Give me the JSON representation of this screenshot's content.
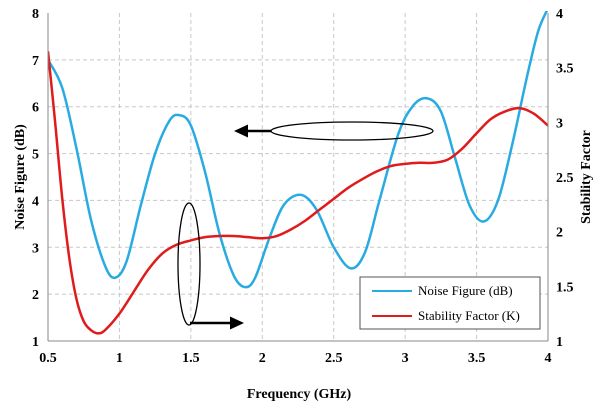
{
  "chart_data": {
    "type": "line",
    "xlabel": "Frequency (GHz)",
    "ylabel_left": "Noise Figure (dB)",
    "ylabel_right": "Stability Factor",
    "xlim": [
      0.5,
      4
    ],
    "ylim_left": [
      1,
      8
    ],
    "ylim_right": [
      1,
      4
    ],
    "x_ticks": [
      "0.5",
      "1",
      "1.5",
      "2",
      "2.5",
      "3",
      "3.5",
      "4"
    ],
    "y_left_ticks": [
      "1",
      "2",
      "3",
      "4",
      "5",
      "6",
      "7",
      "8"
    ],
    "y_right_ticks": [
      "1",
      "1.5",
      "2",
      "2.5",
      "3",
      "3.5",
      "4"
    ],
    "grid": true,
    "legend_position": "bottom-right",
    "series": [
      {
        "name": "Noise Figure (dB)",
        "axis": "left",
        "color": "#29abe2",
        "x": [
          0.5,
          0.6,
          0.7,
          0.8,
          0.9,
          0.97,
          1.05,
          1.15,
          1.25,
          1.35,
          1.42,
          1.5,
          1.6,
          1.7,
          1.8,
          1.88,
          1.95,
          2.05,
          2.15,
          2.27,
          2.38,
          2.5,
          2.62,
          2.72,
          2.82,
          2.95,
          3.05,
          3.15,
          3.25,
          3.35,
          3.45,
          3.55,
          3.65,
          3.75,
          3.85,
          3.93,
          4.0
        ],
        "values": [
          7.0,
          6.4,
          5.1,
          3.6,
          2.6,
          2.35,
          2.7,
          3.9,
          5.0,
          5.7,
          5.82,
          5.6,
          4.6,
          3.3,
          2.4,
          2.15,
          2.35,
          3.2,
          3.9,
          4.12,
          3.8,
          3.0,
          2.55,
          2.9,
          4.0,
          5.4,
          6.0,
          6.18,
          5.9,
          4.9,
          3.9,
          3.55,
          4.0,
          5.2,
          6.6,
          7.6,
          8.1
        ]
      },
      {
        "name": "Stability Factor (K)",
        "axis": "right",
        "color": "#e01b1b",
        "x": [
          0.5,
          0.55,
          0.6,
          0.65,
          0.7,
          0.75,
          0.8,
          0.85,
          0.9,
          1.0,
          1.1,
          1.2,
          1.3,
          1.4,
          1.5,
          1.6,
          1.7,
          1.8,
          1.9,
          2.0,
          2.1,
          2.2,
          2.3,
          2.4,
          2.5,
          2.6,
          2.7,
          2.8,
          2.9,
          3.0,
          3.1,
          3.2,
          3.3,
          3.4,
          3.5,
          3.6,
          3.7,
          3.8,
          3.9,
          4.0
        ],
        "values": [
          3.65,
          3.0,
          2.3,
          1.75,
          1.38,
          1.18,
          1.1,
          1.07,
          1.1,
          1.25,
          1.45,
          1.65,
          1.8,
          1.88,
          1.92,
          1.95,
          1.96,
          1.96,
          1.95,
          1.94,
          1.96,
          2.02,
          2.1,
          2.2,
          2.3,
          2.4,
          2.48,
          2.55,
          2.6,
          2.62,
          2.63,
          2.63,
          2.66,
          2.76,
          2.9,
          3.03,
          3.1,
          3.13,
          3.08,
          2.97
        ]
      }
    ]
  }
}
